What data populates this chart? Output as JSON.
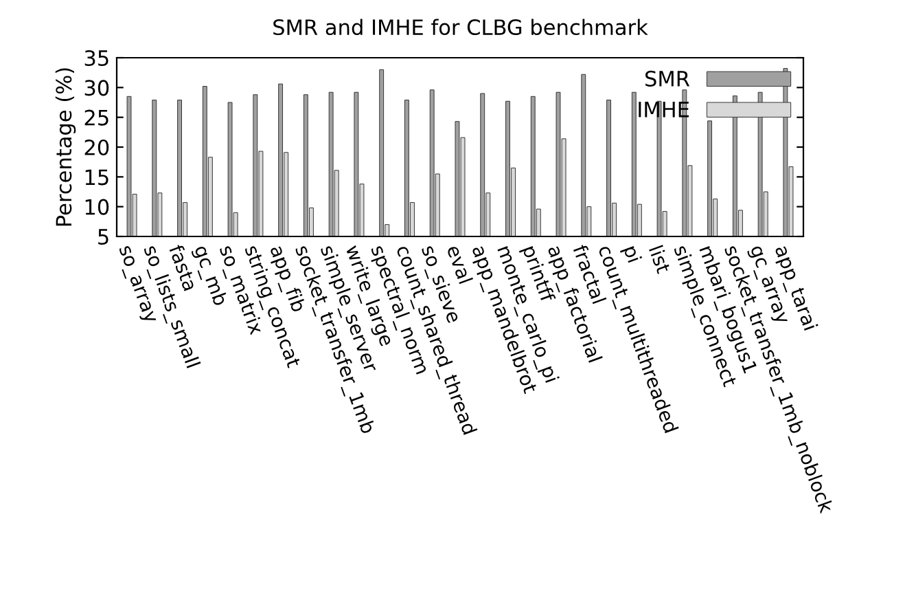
{
  "chart_data": {
    "type": "bar",
    "title": "SMR and IMHE for CLBG benchmark",
    "ylabel": "Percentage (%)",
    "categories": [
      "so_array",
      "so_lists_small",
      "fasta",
      "gc_mb",
      "so_matrix",
      "string_concat",
      "app_fib",
      "socket_transfer_1mb",
      "simple_server",
      "write_large",
      "spectral_norm",
      "count_shared_thread",
      "so_sieve",
      "eval",
      "app_mandelbrot",
      "monte_carlo_pi",
      "printff",
      "app_factorial",
      "fractal",
      "count_multithreaded",
      "pi",
      "list",
      "simple_connect",
      "mbari_bogus1",
      "socket_transfer_1mb_noblock",
      "gc_array",
      "app_tarai"
    ],
    "series": [
      {
        "name": "SMR",
        "color": "#a0a0a0",
        "values": [
          28.5,
          27.9,
          27.9,
          30.2,
          27.5,
          28.8,
          30.6,
          28.8,
          29.2,
          29.2,
          33.0,
          27.9,
          29.6,
          24.3,
          29.0,
          27.7,
          28.5,
          29.2,
          32.2,
          27.9,
          29.2,
          27.7,
          29.6,
          24.4,
          28.6,
          29.2,
          33.2
        ]
      },
      {
        "name": "IMHE",
        "color": "#d8d8d8",
        "values": [
          12.1,
          12.3,
          10.7,
          18.3,
          9.0,
          19.3,
          19.1,
          9.8,
          16.1,
          13.8,
          7.0,
          10.7,
          15.5,
          21.6,
          12.3,
          16.5,
          9.6,
          21.4,
          10.0,
          10.6,
          10.4,
          9.2,
          16.9,
          11.3,
          9.4,
          12.5,
          16.7
        ]
      }
    ],
    "ylim": [
      5,
      35
    ],
    "yticks": [
      5,
      10,
      15,
      20,
      25,
      30,
      35
    ],
    "grid": false,
    "legend": "top right"
  }
}
